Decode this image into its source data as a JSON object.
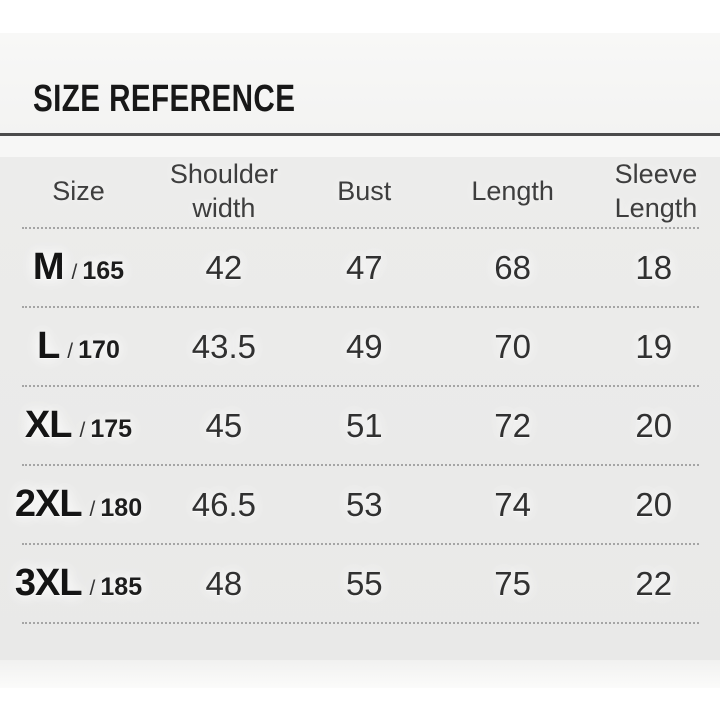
{
  "title": "SIZE REFERENCE",
  "table": {
    "columns": [
      "Size",
      "Shoulder width",
      "Bust",
      "Length",
      "Sleeve Length"
    ],
    "size_separator": "/",
    "rows": [
      {
        "size": "M",
        "height": "165",
        "shoulder_width": "42",
        "bust": "47",
        "length": "68",
        "sleeve_length": "18"
      },
      {
        "size": "L",
        "height": "170",
        "shoulder_width": "43.5",
        "bust": "49",
        "length": "70",
        "sleeve_length": "19"
      },
      {
        "size": "XL",
        "height": "175",
        "shoulder_width": "45",
        "bust": "51",
        "length": "72",
        "sleeve_length": "20"
      },
      {
        "size": "2XL",
        "height": "180",
        "shoulder_width": "46.5",
        "bust": "53",
        "length": "74",
        "sleeve_length": "20"
      },
      {
        "size": "3XL",
        "height": "185",
        "shoulder_width": "48",
        "bust": "55",
        "length": "75",
        "sleeve_length": "22"
      }
    ]
  },
  "chart_data": {
    "type": "table",
    "title": "SIZE REFERENCE",
    "columns": [
      "Size",
      "Shoulder width",
      "Bust",
      "Length",
      "Sleeve Length"
    ],
    "rows": [
      [
        "M / 165",
        42,
        47,
        68,
        18
      ],
      [
        "L / 170",
        43.5,
        49,
        70,
        19
      ],
      [
        "XL / 175",
        45,
        51,
        72,
        20
      ],
      [
        "2XL / 180",
        46.5,
        53,
        74,
        20
      ],
      [
        "3XL / 185",
        48,
        55,
        75,
        22
      ]
    ]
  },
  "colors": {
    "page_background": "#ffffff",
    "title_section_background": "#f5f5f4",
    "panel_background": "#ebebea",
    "rule": "#4b4b4b",
    "dotted_separator": "#a5a5a5",
    "title_text": "#181818",
    "header_text": "#3e3e3e",
    "value_text": "#313131"
  }
}
